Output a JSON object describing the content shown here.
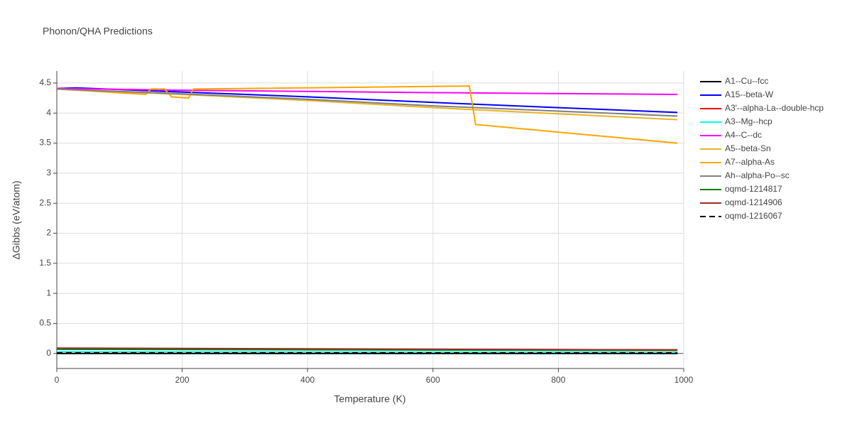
{
  "chart_data": {
    "type": "line",
    "title": "Phonon/QHA Predictions",
    "xlabel": "Temperature (K)",
    "ylabel": "ΔGibbs (eV/atom)",
    "xlim": [
      0,
      1000
    ],
    "xticks": [
      0,
      200,
      400,
      600,
      800,
      1000
    ],
    "ylim": [
      -0.25,
      4.7
    ],
    "yticks": [
      0,
      0.5,
      1,
      1.5,
      2,
      2.5,
      3,
      3.5,
      4,
      4.5
    ],
    "grid": true,
    "legend": "right",
    "series": [
      {
        "name": "A1--Cu--fcc",
        "color": "#000000",
        "x": [
          0,
          990
        ],
        "values": [
          0,
          0
        ]
      },
      {
        "name": "A15--beta-W",
        "color": "#0000ff",
        "x": [
          0,
          30,
          200,
          400,
          660,
          990
        ],
        "values": [
          4.41,
          4.42,
          4.35,
          4.27,
          4.15,
          4.01
        ]
      },
      {
        "name": "A3'--alpha-La--double-hcp",
        "color": "#ff0000",
        "x": [
          0,
          990
        ],
        "values": [
          0.08,
          0.06
        ]
      },
      {
        "name": "A3--Mg--hcp",
        "color": "#00ffff",
        "x": [
          0,
          990
        ],
        "values": [
          0.03,
          0.02
        ]
      },
      {
        "name": "A4--C--dc",
        "color": "#ff00ff",
        "x": [
          0,
          200,
          600,
          990
        ],
        "values": [
          4.41,
          4.38,
          4.34,
          4.31
        ]
      },
      {
        "name": "A5--beta-Sn",
        "color": "#e6b422",
        "x": [
          0,
          200,
          400,
          600,
          990
        ],
        "values": [
          4.4,
          4.31,
          4.21,
          4.09,
          3.89
        ]
      },
      {
        "name": "A7--alpha-As",
        "color": "#ffa500",
        "x": [
          0,
          142,
          150,
          172,
          183,
          210,
          218,
          658,
          668,
          990
        ],
        "values": [
          4.4,
          4.31,
          4.4,
          4.4,
          4.27,
          4.25,
          4.4,
          4.45,
          3.81,
          3.5
        ]
      },
      {
        "name": "Ah--alpha-Po--sc",
        "color": "#808080",
        "x": [
          0,
          200,
          400,
          600,
          990
        ],
        "values": [
          4.4,
          4.32,
          4.23,
          4.12,
          3.95
        ]
      },
      {
        "name": "oqmd-1214817",
        "color": "#008000",
        "x": [
          0,
          990
        ],
        "values": [
          0.07,
          0.05
        ]
      },
      {
        "name": "oqmd-1214906",
        "color": "#a52a2a",
        "x": [
          0,
          990
        ],
        "values": [
          0.09,
          0.06
        ]
      },
      {
        "name": "oqmd-1216067",
        "color": "#000000",
        "dash": "dash",
        "x": [
          0,
          990
        ],
        "values": [
          0.01,
          0.01
        ]
      }
    ]
  }
}
